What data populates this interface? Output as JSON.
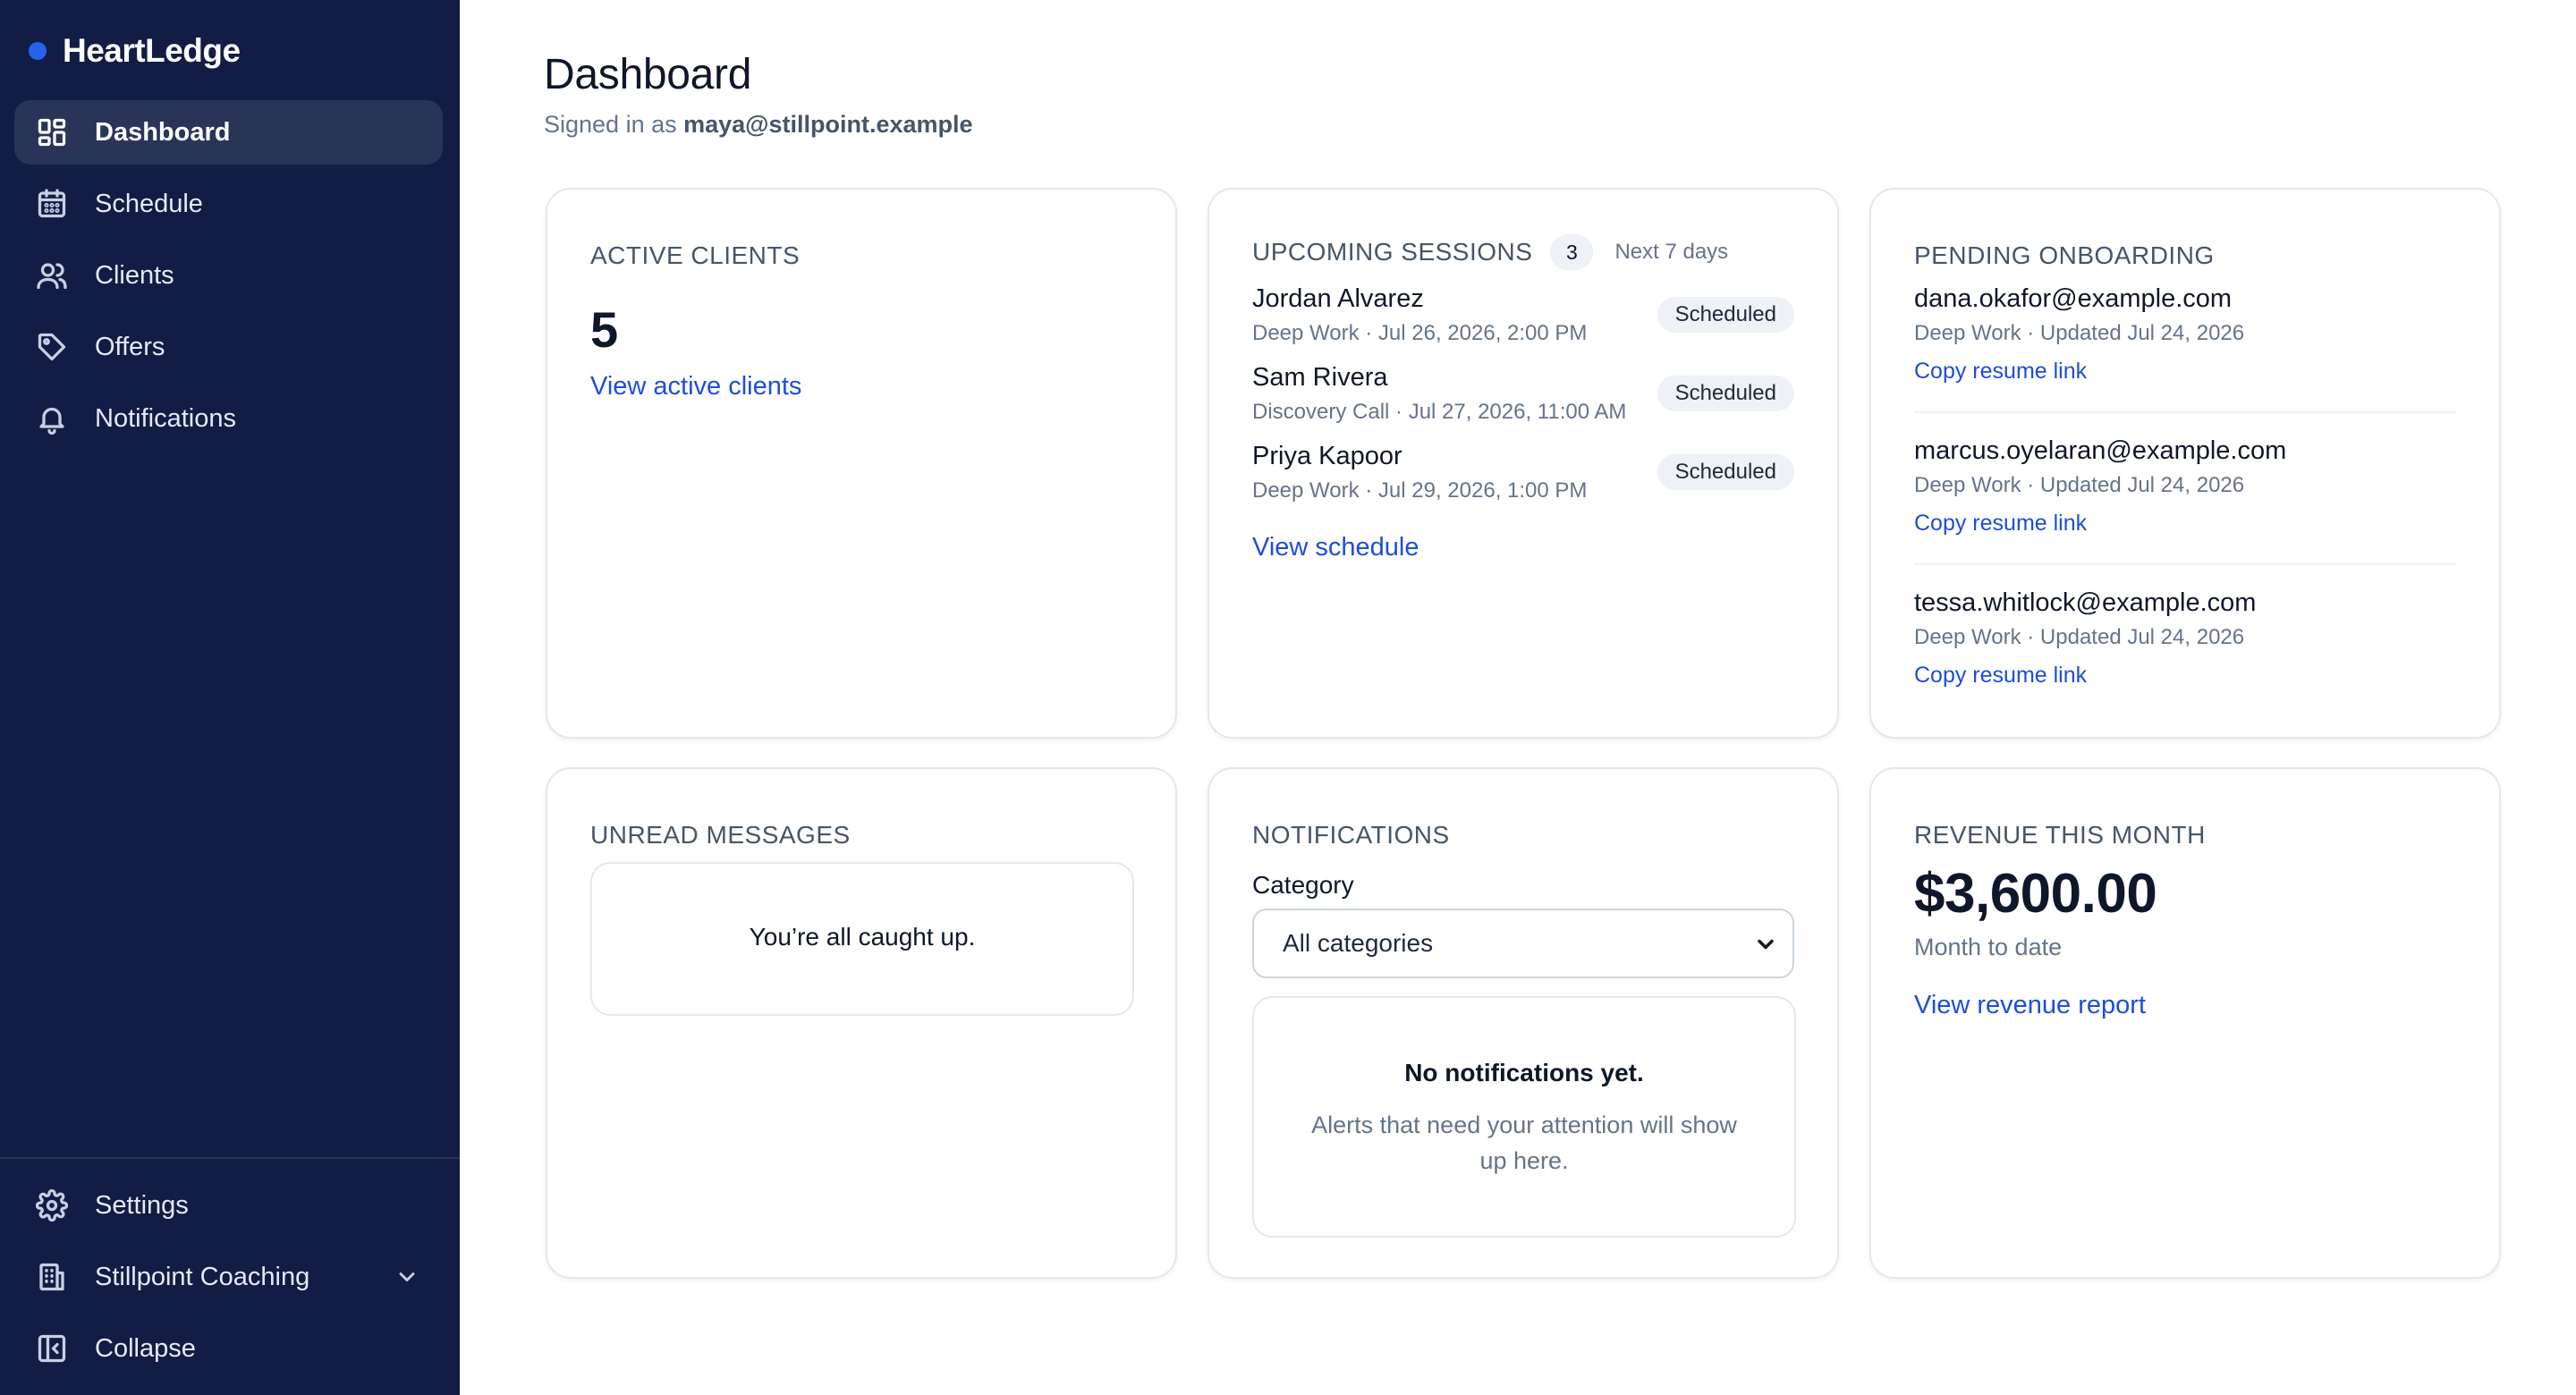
{
  "brand": {
    "name": "HeartLedge"
  },
  "sidebar": {
    "items": [
      {
        "label": "Dashboard",
        "icon": "dashboard-icon"
      },
      {
        "label": "Schedule",
        "icon": "calendar-icon"
      },
      {
        "label": "Clients",
        "icon": "users-icon"
      },
      {
        "label": "Offers",
        "icon": "tag-icon"
      },
      {
        "label": "Notifications",
        "icon": "bell-icon"
      }
    ],
    "bottom": [
      {
        "label": "Settings",
        "icon": "gear-icon"
      },
      {
        "label": "Stillpoint Coaching",
        "icon": "building-icon"
      },
      {
        "label": "Collapse",
        "icon": "collapse-icon"
      }
    ]
  },
  "header": {
    "title": "Dashboard",
    "signed_prefix": "Signed in as",
    "email": "maya@stillpoint.example"
  },
  "active_clients": {
    "label": "ACTIVE CLIENTS",
    "count": "5",
    "link": "View active clients"
  },
  "upcoming": {
    "label": "UPCOMING SESSIONS",
    "count": "3",
    "range": "Next 7 days",
    "sessions": [
      {
        "name": "Jordan Alvarez",
        "meta": "Deep Work · Jul 26, 2026, 2:00 PM",
        "status": "Scheduled"
      },
      {
        "name": "Sam Rivera",
        "meta": "Discovery Call · Jul 27, 2026, 11:00 AM",
        "status": "Scheduled"
      },
      {
        "name": "Priya Kapoor",
        "meta": "Deep Work · Jul 29, 2026, 1:00 PM",
        "status": "Scheduled"
      }
    ],
    "link": "View schedule"
  },
  "onboarding": {
    "label": "PENDING ONBOARDING",
    "items": [
      {
        "email": "dana.okafor@example.com",
        "meta": "Deep Work · Updated Jul 24, 2026",
        "link": "Copy resume link"
      },
      {
        "email": "marcus.oyelaran@example.com",
        "meta": "Deep Work · Updated Jul 24, 2026",
        "link": "Copy resume link"
      },
      {
        "email": "tessa.whitlock@example.com",
        "meta": "Deep Work · Updated Jul 24, 2026",
        "link": "Copy resume link"
      }
    ]
  },
  "messages": {
    "label": "UNREAD MESSAGES",
    "empty": "You’re all caught up."
  },
  "notifications": {
    "label": "NOTIFICATIONS",
    "category_label": "Category",
    "category_value": "All categories",
    "empty_title": "No notifications yet.",
    "empty_text": "Alerts that need your attention will show up here."
  },
  "revenue": {
    "label": "REVENUE THIS MONTH",
    "amount": "$3,600.00",
    "sub": "Month to date",
    "link": "View revenue report"
  },
  "colors": {
    "sidebar": "#131c45",
    "accent": "#1d4ed8",
    "brand_dot": "#2563eb"
  }
}
